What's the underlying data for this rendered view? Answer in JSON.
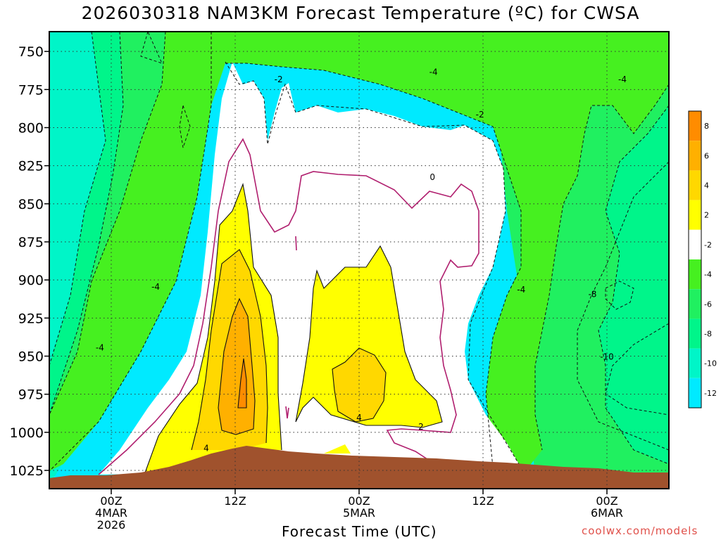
{
  "title": "2026030318 NAM3KM Forecast Temperature (ºC) for CWSA",
  "xlabel": "Forecast Time (UTC)",
  "credit": "coolwx.com/models",
  "colors": {
    "ground": "#a0522d",
    "c_neg12": "#00eaff",
    "c_neg10": "#00f5c8",
    "c_neg8": "#00f58a",
    "c_neg6": "#20f060",
    "c_neg4": "#46f020",
    "c_neg2": "#ffffff",
    "c_2": "#ffff00",
    "c_4": "#ffd800",
    "c_6": "#ffb000",
    "c_8": "#ff8c00",
    "zero_line": "#b01e6e"
  },
  "chart_data": {
    "type": "contour",
    "title": "2026030318 NAM3KM Forecast Temperature (ºC) for CWSA",
    "xlabel": "Forecast Time (UTC)",
    "ylabel": "",
    "y_axis": {
      "unit": "hPa",
      "inverted": true,
      "range": [
        737,
        1037
      ],
      "ticks": [
        750,
        775,
        800,
        825,
        850,
        875,
        900,
        925,
        950,
        975,
        1000,
        1025
      ]
    },
    "x_axis": {
      "unit": "hours since 2026-03-03 18Z",
      "range": [
        0,
        60
      ],
      "ticks": [
        {
          "x": 6,
          "lines": [
            "00Z",
            "4MAR",
            "2026"
          ]
        },
        {
          "x": 18,
          "lines": [
            "12Z"
          ]
        },
        {
          "x": 30,
          "lines": [
            "00Z",
            "5MAR"
          ]
        },
        {
          "x": 42,
          "lines": [
            "12Z"
          ]
        },
        {
          "x": 54,
          "lines": [
            "00Z",
            "6MAR"
          ]
        }
      ]
    },
    "colorbar": {
      "labels": [
        "8",
        "6",
        "4",
        "2",
        "-2",
        "-4",
        "-6",
        "-8",
        "-10",
        "-12"
      ],
      "colors": [
        "#ff8c00",
        "#ffb000",
        "#ffd800",
        "#ffff00",
        "#ffffff",
        "#46f020",
        "#20f060",
        "#00f58a",
        "#00f5c8",
        "#00eaff"
      ]
    },
    "contour_labels": [
      {
        "text": "-2",
        "x": 22.2,
        "y": 768
      },
      {
        "text": "-4",
        "x": 37.2,
        "y": 763
      },
      {
        "text": "-4",
        "x": 55.5,
        "y": 768
      },
      {
        "text": "-2",
        "x": 41.7,
        "y": 791
      },
      {
        "text": "0",
        "x": 37.1,
        "y": 832
      },
      {
        "text": "-4",
        "x": 10.3,
        "y": 904
      },
      {
        "text": "-4",
        "x": 4.9,
        "y": 944
      },
      {
        "text": "-4",
        "x": 45.7,
        "y": 906
      },
      {
        "text": "-8",
        "x": 52.6,
        "y": 909
      },
      {
        "text": "-10",
        "x": 54.0,
        "y": 950
      },
      {
        "text": "4",
        "x": 30.0,
        "y": 990
      },
      {
        "text": "2",
        "x": 36.0,
        "y": 996
      },
      {
        "text": "4",
        "x": 15.2,
        "y": 1010
      }
    ]
  }
}
